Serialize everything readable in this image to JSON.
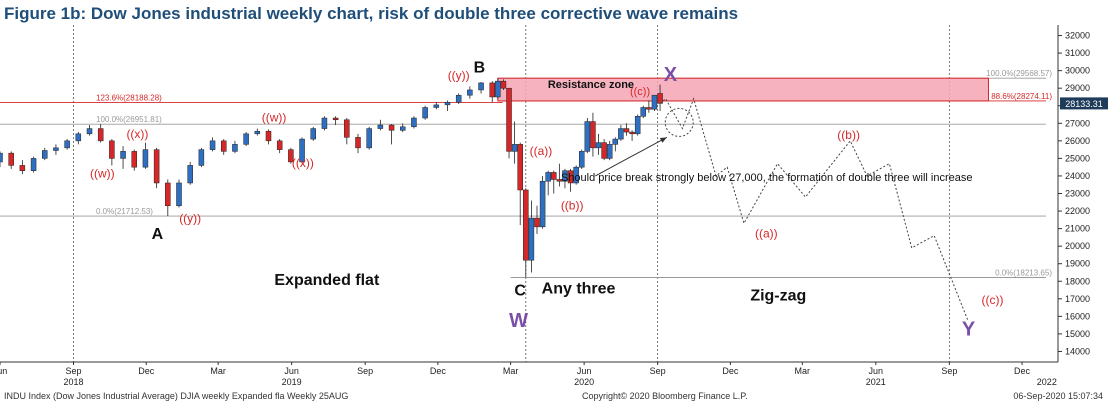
{
  "title": "Figure 1b: Dow Jones industrial weekly chart, risk of double three corrective wave remains",
  "footer": {
    "left": "INDU Index (Dow Jones Industrial Average) DJIA weekly Expanded fla  Weekly 25AUG",
    "center": "Copyright© 2020 Bloomberg Finance L.P.",
    "right": "06-Sep-2020 15:07:34"
  },
  "colors": {
    "up": "#2f6fc1",
    "down": "#d62728",
    "wave_label": "#d62728",
    "xy_label": "#7b4fa8",
    "resistance_fill": "#f4a6b4",
    "resistance_edge": "#d62728",
    "last_price_bg": "#1f3b5a"
  },
  "chart_data": {
    "type": "candlestick",
    "title": "Figure 1b: Dow Jones industrial weekly chart, risk of double three corrective wave remains",
    "y_axis": {
      "position": "right",
      "ylim": [
        13400,
        32600
      ],
      "ticks": [
        14000,
        15000,
        16000,
        17000,
        18000,
        19000,
        20000,
        21000,
        22000,
        23000,
        24000,
        25000,
        26000,
        27000,
        28000,
        29000,
        30000,
        31000,
        32000
      ]
    },
    "x_axis": {
      "range": [
        "2018-06-01",
        "2022-01-15"
      ],
      "ticks": [
        {
          "date": "2018-06-01",
          "label": "Jun"
        },
        {
          "date": "2018-09-01",
          "label": "Sep"
        },
        {
          "date": "2018-12-01",
          "label": "Dec"
        },
        {
          "date": "2019-03-01",
          "label": "Mar"
        },
        {
          "date": "2019-06-01",
          "label": "Jun"
        },
        {
          "date": "2019-09-01",
          "label": "Sep"
        },
        {
          "date": "2019-12-01",
          "label": "Dec"
        },
        {
          "date": "2020-03-01",
          "label": "Mar"
        },
        {
          "date": "2020-06-01",
          "label": "Jun"
        },
        {
          "date": "2020-09-01",
          "label": "Sep"
        },
        {
          "date": "2020-12-01",
          "label": "Dec"
        },
        {
          "date": "2021-03-01",
          "label": "Mar"
        },
        {
          "date": "2021-06-01",
          "label": "Jun"
        },
        {
          "date": "2021-09-01",
          "label": "Sep"
        },
        {
          "date": "2021-12-01",
          "label": "Dec"
        }
      ],
      "year_labels": [
        {
          "date": "2018-09-01",
          "label": "2018"
        },
        {
          "date": "2019-06-01",
          "label": "2019"
        },
        {
          "date": "2020-06-01",
          "label": "2020"
        },
        {
          "date": "2021-06-01",
          "label": "2021"
        },
        {
          "date": "2022-01-01",
          "label": "2022"
        }
      ],
      "year_separators": [
        "2018-09-01",
        "2020-03-20",
        "2020-09-01",
        "2021-09-01"
      ]
    },
    "candles": [
      {
        "date": "2018-06-01",
        "o": 24800,
        "h": 25400,
        "l": 24500,
        "c": 25300
      },
      {
        "date": "2018-06-15",
        "o": 25300,
        "h": 25400,
        "l": 24400,
        "c": 24600
      },
      {
        "date": "2018-06-29",
        "o": 24600,
        "h": 24900,
        "l": 24100,
        "c": 24300
      },
      {
        "date": "2018-07-13",
        "o": 24300,
        "h": 25100,
        "l": 24200,
        "c": 25000
      },
      {
        "date": "2018-07-27",
        "o": 25000,
        "h": 25600,
        "l": 24900,
        "c": 25450
      },
      {
        "date": "2018-08-10",
        "o": 25450,
        "h": 25800,
        "l": 25200,
        "c": 25600
      },
      {
        "date": "2018-08-24",
        "o": 25600,
        "h": 26100,
        "l": 25500,
        "c": 26000
      },
      {
        "date": "2018-09-07",
        "o": 26000,
        "h": 26500,
        "l": 25800,
        "c": 26400
      },
      {
        "date": "2018-09-21",
        "o": 26400,
        "h": 26900,
        "l": 26300,
        "c": 26700
      },
      {
        "date": "2018-10-05",
        "o": 26700,
        "h": 26950,
        "l": 25900,
        "c": 26000
      },
      {
        "date": "2018-10-19",
        "o": 26000,
        "h": 26100,
        "l": 24600,
        "c": 25000
      },
      {
        "date": "2018-11-02",
        "o": 25000,
        "h": 25700,
        "l": 24400,
        "c": 25400
      },
      {
        "date": "2018-11-16",
        "o": 25400,
        "h": 25500,
        "l": 24300,
        "c": 24500
      },
      {
        "date": "2018-11-30",
        "o": 24500,
        "h": 25900,
        "l": 24400,
        "c": 25500
      },
      {
        "date": "2018-12-14",
        "o": 25500,
        "h": 25600,
        "l": 23300,
        "c": 23600
      },
      {
        "date": "2018-12-28",
        "o": 23600,
        "h": 23800,
        "l": 21712,
        "c": 22300
      },
      {
        "date": "2019-01-11",
        "o": 22300,
        "h": 23800,
        "l": 22200,
        "c": 23600
      },
      {
        "date": "2019-01-25",
        "o": 23600,
        "h": 24800,
        "l": 23500,
        "c": 24600
      },
      {
        "date": "2019-02-08",
        "o": 24600,
        "h": 25600,
        "l": 24500,
        "c": 25500
      },
      {
        "date": "2019-02-22",
        "o": 25500,
        "h": 26200,
        "l": 25400,
        "c": 26000
      },
      {
        "date": "2019-03-08",
        "o": 26000,
        "h": 26100,
        "l": 25200,
        "c": 25400
      },
      {
        "date": "2019-03-22",
        "o": 25400,
        "h": 26000,
        "l": 25300,
        "c": 25800
      },
      {
        "date": "2019-04-05",
        "o": 25800,
        "h": 26500,
        "l": 25700,
        "c": 26400
      },
      {
        "date": "2019-04-19",
        "o": 26400,
        "h": 26700,
        "l": 26300,
        "c": 26550
      },
      {
        "date": "2019-05-03",
        "o": 26550,
        "h": 26650,
        "l": 25800,
        "c": 26000
      },
      {
        "date": "2019-05-17",
        "o": 26000,
        "h": 26100,
        "l": 25300,
        "c": 25500
      },
      {
        "date": "2019-05-31",
        "o": 25500,
        "h": 25600,
        "l": 24700,
        "c": 24800
      },
      {
        "date": "2019-06-14",
        "o": 24800,
        "h": 26200,
        "l": 24700,
        "c": 26100
      },
      {
        "date": "2019-06-28",
        "o": 26100,
        "h": 26800,
        "l": 26000,
        "c": 26700
      },
      {
        "date": "2019-07-12",
        "o": 26700,
        "h": 27400,
        "l": 26600,
        "c": 27300
      },
      {
        "date": "2019-07-26",
        "o": 27300,
        "h": 27400,
        "l": 26900,
        "c": 27200
      },
      {
        "date": "2019-08-09",
        "o": 27200,
        "h": 27300,
        "l": 25800,
        "c": 26200
      },
      {
        "date": "2019-08-23",
        "o": 26200,
        "h": 26400,
        "l": 25300,
        "c": 25600
      },
      {
        "date": "2019-09-06",
        "o": 25600,
        "h": 26800,
        "l": 25500,
        "c": 26700
      },
      {
        "date": "2019-09-20",
        "o": 26700,
        "h": 27200,
        "l": 26600,
        "c": 26900
      },
      {
        "date": "2019-10-04",
        "o": 26900,
        "h": 26950,
        "l": 25800,
        "c": 26600
      },
      {
        "date": "2019-10-18",
        "o": 26600,
        "h": 27000,
        "l": 26500,
        "c": 26800
      },
      {
        "date": "2019-11-01",
        "o": 26800,
        "h": 27400,
        "l": 26700,
        "c": 27300
      },
      {
        "date": "2019-11-15",
        "o": 27300,
        "h": 28000,
        "l": 27200,
        "c": 27900
      },
      {
        "date": "2019-11-29",
        "o": 27900,
        "h": 28200,
        "l": 27800,
        "c": 28050
      },
      {
        "date": "2019-12-13",
        "o": 28050,
        "h": 28300,
        "l": 27700,
        "c": 28200
      },
      {
        "date": "2019-12-27",
        "o": 28200,
        "h": 28700,
        "l": 28100,
        "c": 28600
      },
      {
        "date": "2020-01-10",
        "o": 28600,
        "h": 29100,
        "l": 28400,
        "c": 28900
      },
      {
        "date": "2020-01-24",
        "o": 28900,
        "h": 29350,
        "l": 28700,
        "c": 29300
      },
      {
        "date": "2020-02-07",
        "o": 29300,
        "h": 29400,
        "l": 28200,
        "c": 28500
      },
      {
        "date": "2020-02-14",
        "o": 28500,
        "h": 29568,
        "l": 28400,
        "c": 29400
      },
      {
        "date": "2020-02-21",
        "o": 29400,
        "h": 29500,
        "l": 28900,
        "c": 29000
      },
      {
        "date": "2020-02-28",
        "o": 29000,
        "h": 29000,
        "l": 25000,
        "c": 25400
      },
      {
        "date": "2020-03-06",
        "o": 25400,
        "h": 27100,
        "l": 24700,
        "c": 25800
      },
      {
        "date": "2020-03-13",
        "o": 25800,
        "h": 25900,
        "l": 21200,
        "c": 23200
      },
      {
        "date": "2020-03-20",
        "o": 23200,
        "h": 23300,
        "l": 18213,
        "c": 19200
      },
      {
        "date": "2020-03-27",
        "o": 19200,
        "h": 22600,
        "l": 18500,
        "c": 21600
      },
      {
        "date": "2020-04-03",
        "o": 21600,
        "h": 22300,
        "l": 20700,
        "c": 21100
      },
      {
        "date": "2020-04-10",
        "o": 21100,
        "h": 24000,
        "l": 21000,
        "c": 23700
      },
      {
        "date": "2020-04-17",
        "o": 23700,
        "h": 24300,
        "l": 22900,
        "c": 24200
      },
      {
        "date": "2020-04-24",
        "o": 24200,
        "h": 24300,
        "l": 23000,
        "c": 23800
      },
      {
        "date": "2020-05-01",
        "o": 23800,
        "h": 24700,
        "l": 23400,
        "c": 23700
      },
      {
        "date": "2020-05-08",
        "o": 23700,
        "h": 24400,
        "l": 23300,
        "c": 24300
      },
      {
        "date": "2020-05-15",
        "o": 24300,
        "h": 24400,
        "l": 23100,
        "c": 23600
      },
      {
        "date": "2020-05-22",
        "o": 23600,
        "h": 24600,
        "l": 23500,
        "c": 24500
      },
      {
        "date": "2020-05-29",
        "o": 24500,
        "h": 25500,
        "l": 24400,
        "c": 25400
      },
      {
        "date": "2020-06-05",
        "o": 25400,
        "h": 27300,
        "l": 25300,
        "c": 27100
      },
      {
        "date": "2020-06-12",
        "o": 27100,
        "h": 27600,
        "l": 25100,
        "c": 25600
      },
      {
        "date": "2020-06-19",
        "o": 25600,
        "h": 26400,
        "l": 25200,
        "c": 25900
      },
      {
        "date": "2020-06-26",
        "o": 25900,
        "h": 26100,
        "l": 24900,
        "c": 25000
      },
      {
        "date": "2020-07-03",
        "o": 25000,
        "h": 26000,
        "l": 24900,
        "c": 25800
      },
      {
        "date": "2020-07-10",
        "o": 25800,
        "h": 26200,
        "l": 25400,
        "c": 26100
      },
      {
        "date": "2020-07-17",
        "o": 26100,
        "h": 26900,
        "l": 26000,
        "c": 26700
      },
      {
        "date": "2020-07-24",
        "o": 26700,
        "h": 27000,
        "l": 26300,
        "c": 26500
      },
      {
        "date": "2020-07-31",
        "o": 26500,
        "h": 26600,
        "l": 26000,
        "c": 26400
      },
      {
        "date": "2020-08-07",
        "o": 26400,
        "h": 27500,
        "l": 26300,
        "c": 27400
      },
      {
        "date": "2020-08-14",
        "o": 27400,
        "h": 28000,
        "l": 27300,
        "c": 27900
      },
      {
        "date": "2020-08-21",
        "o": 27900,
        "h": 28300,
        "l": 27600,
        "c": 27800
      },
      {
        "date": "2020-08-28",
        "o": 27800,
        "h": 28600,
        "l": 27700,
        "c": 28600
      },
      {
        "date": "2020-09-04",
        "o": 28700,
        "h": 29200,
        "l": 27700,
        "c": 28133
      }
    ],
    "projection": [
      {
        "date": "2020-09-11",
        "y": 28400
      },
      {
        "date": "2020-10-02",
        "y": 26700
      },
      {
        "date": "2020-10-16",
        "y": 28400
      },
      {
        "date": "2020-11-13",
        "y": 24000
      },
      {
        "date": "2020-11-27",
        "y": 24500
      },
      {
        "date": "2020-12-18",
        "y": 21300
      },
      {
        "date": "2021-01-29",
        "y": 24700
      },
      {
        "date": "2021-03-05",
        "y": 22800
      },
      {
        "date": "2021-04-30",
        "y": 26000
      },
      {
        "date": "2021-05-21",
        "y": 24000
      },
      {
        "date": "2021-06-18",
        "y": 24700
      },
      {
        "date": "2021-07-16",
        "y": 19900
      },
      {
        "date": "2021-08-13",
        "y": 20600
      },
      {
        "date": "2021-09-24",
        "y": 15800
      }
    ],
    "levels": [
      {
        "value": 29568.57,
        "label": "100.0%(29568.57)",
        "from": "2020-02-14",
        "to": "2021-12-31",
        "color": "#9a9a9a",
        "label_side": "right"
      },
      {
        "value": 28274.11,
        "label": "88.6%(28274.11)",
        "from": "2020-02-14",
        "to": "2021-12-31",
        "color": "#d62728",
        "label_side": "right"
      },
      {
        "value": 28188.28,
        "label": "123.6%(28188.28)",
        "from": "2018-06-01",
        "to": "2020-02-20",
        "color": "#d62728",
        "label_side": "left"
      },
      {
        "value": 26951.81,
        "label": "100.0%(26951.81)",
        "from": "2018-06-01",
        "to": "2021-12-31",
        "color": "#9a9a9a",
        "label_side": "left"
      },
      {
        "value": 21712.53,
        "label": "0.0%(21712.53)",
        "from": "2018-06-01",
        "to": "2021-12-31",
        "color": "#9a9a9a",
        "label_side": "left"
      },
      {
        "value": 18213.65,
        "label": "0.0%(18213.65)",
        "from": "2020-03-01",
        "to": "2021-12-31",
        "color": "#9a9a9a",
        "label_side": "right"
      }
    ],
    "resistance_zone": {
      "label": "Resistance zone",
      "from": "2020-02-14",
      "to": "2021-10-20",
      "y_low": 28274,
      "y_high": 29568
    },
    "last_price": {
      "value": 28133.31,
      "label": "28133.31"
    },
    "annotations": [
      {
        "text": "((w))",
        "date": "2018-10-07",
        "y": 23900,
        "color": "red",
        "size": 12
      },
      {
        "text": "((x))",
        "date": "2018-11-20",
        "y": 26150,
        "color": "red",
        "size": 12
      },
      {
        "text": "((y))",
        "date": "2019-01-25",
        "y": 21350,
        "color": "red",
        "size": 12
      },
      {
        "text": "((w))",
        "date": "2019-05-10",
        "y": 27100,
        "color": "red",
        "size": 12
      },
      {
        "text": "((x))",
        "date": "2019-06-15",
        "y": 24500,
        "color": "red",
        "size": 12
      },
      {
        "text": "((y))",
        "date": "2019-12-27",
        "y": 29500,
        "color": "red",
        "size": 12
      },
      {
        "text": "((a))",
        "date": "2020-04-08",
        "y": 25200,
        "color": "red",
        "size": 12
      },
      {
        "text": "((b))",
        "date": "2020-05-17",
        "y": 22100,
        "color": "red",
        "size": 12
      },
      {
        "text": "((c))",
        "date": "2020-08-10",
        "y": 28600,
        "color": "red",
        "size": 11
      },
      {
        "text": "((a))",
        "date": "2021-01-15",
        "y": 20500,
        "color": "red",
        "size": 12
      },
      {
        "text": "((b))",
        "date": "2021-04-28",
        "y": 26100,
        "color": "red",
        "size": 12
      },
      {
        "text": "((c))",
        "date": "2021-10-25",
        "y": 16700,
        "color": "red",
        "size": 12
      },
      {
        "text": "A",
        "date": "2018-12-15",
        "y": 20400,
        "color": "black",
        "size": 16,
        "bold": true
      },
      {
        "text": "B",
        "date": "2020-01-22",
        "y": 29900,
        "color": "black",
        "size": 16,
        "bold": true
      },
      {
        "text": "C",
        "date": "2020-03-13",
        "y": 17200,
        "color": "black",
        "size": 16,
        "bold": true
      },
      {
        "text": "W",
        "date": "2020-03-11",
        "y": 15400,
        "color": "purple",
        "size": 20,
        "bold": true
      },
      {
        "text": "X",
        "date": "2020-09-17",
        "y": 29400,
        "color": "purple",
        "size": 20,
        "bold": true
      },
      {
        "text": "Y",
        "date": "2021-09-25",
        "y": 14900,
        "color": "purple",
        "size": 20,
        "bold": true
      },
      {
        "text": "Expanded flat",
        "date": "2019-07-15",
        "y": 17800,
        "color": "black",
        "size": 16,
        "bold": true
      },
      {
        "text": "Any three",
        "date": "2020-05-25",
        "y": 17300,
        "color": "black",
        "size": 16,
        "bold": true
      },
      {
        "text": "Zig-zag",
        "date": "2021-01-30",
        "y": 16900,
        "color": "black",
        "size": 16,
        "bold": true
      },
      {
        "text": "Should price break strongly below 27,000, the formation of double three will increase",
        "date": "2020-05-03",
        "y": 23700,
        "color": "black",
        "size": 11,
        "anchor": "start"
      }
    ],
    "arrow": {
      "from_date": "2020-06-15",
      "from_y": 24000,
      "to_date": "2020-09-30",
      "to_y": 26200
    },
    "circle": {
      "date": "2020-09-28",
      "y": 27050,
      "r": 14
    }
  }
}
